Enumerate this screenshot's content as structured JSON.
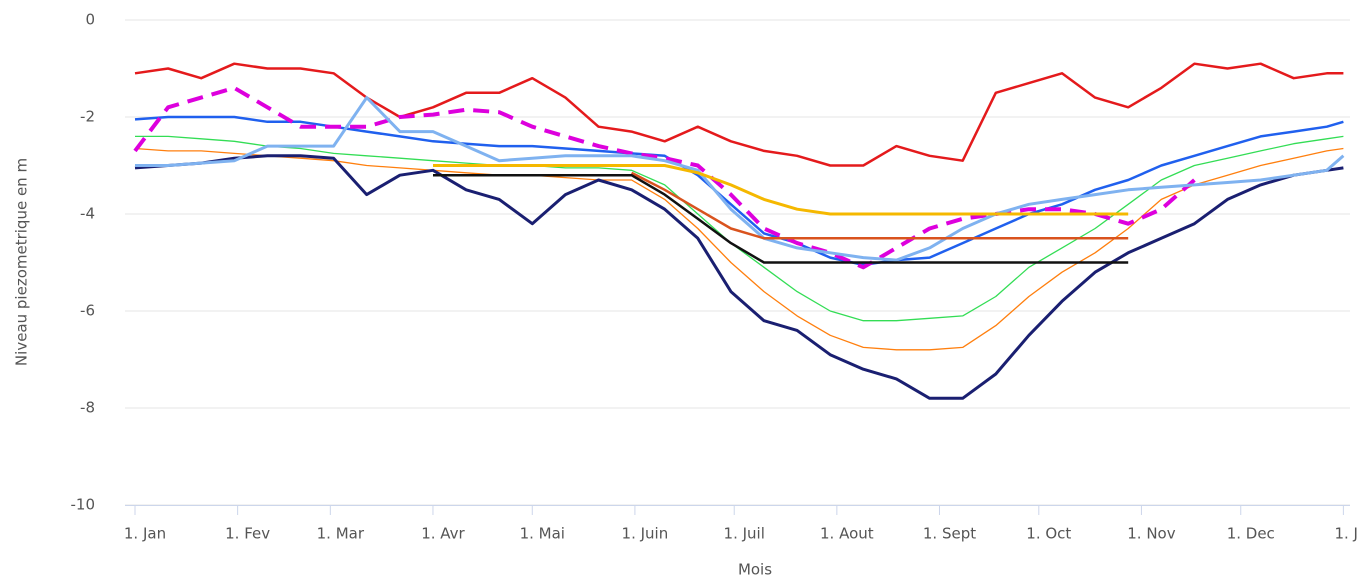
{
  "chart_data": {
    "type": "line",
    "x_label": "Mois",
    "y_label": "Niveau piezometrique en m",
    "x": [
      0,
      10,
      20,
      30,
      40,
      50,
      60,
      70,
      80,
      90,
      100,
      110,
      120,
      130,
      140,
      150,
      160,
      170,
      180,
      190,
      200,
      210,
      220,
      230,
      240,
      250,
      260,
      270,
      280,
      290,
      300,
      310,
      320,
      330,
      340,
      350,
      360,
      365
    ],
    "xlim": [
      0,
      367
    ],
    "xticks": [
      {
        "value": 0,
        "label": "1. Jan"
      },
      {
        "value": 31,
        "label": "1. Fev"
      },
      {
        "value": 59,
        "label": "1. Mar"
      },
      {
        "value": 90,
        "label": "1. Avr"
      },
      {
        "value": 120,
        "label": "1. Mai"
      },
      {
        "value": 151,
        "label": "1. Juin"
      },
      {
        "value": 181,
        "label": "1. Juil"
      },
      {
        "value": 212,
        "label": "1. Aout"
      },
      {
        "value": 243,
        "label": "1. Sept"
      },
      {
        "value": 273,
        "label": "1. Oct"
      },
      {
        "value": 304,
        "label": "1. Nov"
      },
      {
        "value": 334,
        "label": "1. Dec"
      },
      {
        "value": 365,
        "label": "1. J..."
      }
    ],
    "ylim": [
      -10,
      0
    ],
    "yticks": [
      -10,
      -8,
      -6,
      -4,
      -2,
      0
    ],
    "grid": true,
    "series": [
      {
        "color": "#e41a1c",
        "width": 2.5,
        "values": [
          -1.1,
          -1.0,
          -1.2,
          -0.9,
          -1.0,
          -1.0,
          -1.1,
          -1.6,
          -2.0,
          -1.8,
          -1.5,
          -1.5,
          -1.2,
          -1.6,
          -2.2,
          -2.3,
          -2.5,
          -2.2,
          -2.5,
          -2.7,
          -2.8,
          -3.0,
          -3.0,
          -2.6,
          -2.8,
          -2.9,
          -1.5,
          -1.3,
          -1.1,
          -1.6,
          -1.8,
          -1.4,
          -0.9,
          -1.0,
          -0.9,
          -1.2,
          -1.1,
          -1.1
        ]
      },
      {
        "color": "#2060ee",
        "width": 2.5,
        "values": [
          -2.05,
          -2.0,
          -2.0,
          -2.0,
          -2.1,
          -2.1,
          -2.2,
          -2.3,
          -2.4,
          -2.5,
          -2.55,
          -2.6,
          -2.6,
          -2.65,
          -2.7,
          -2.75,
          -2.8,
          -3.2,
          -3.8,
          -4.4,
          -4.6,
          -4.9,
          -5.05,
          -4.95,
          -4.9,
          -4.6,
          -4.3,
          -4.0,
          -3.8,
          -3.5,
          -3.3,
          -3.0,
          -2.8,
          -2.6,
          -2.4,
          -2.3,
          -2.2,
          -2.1
        ]
      },
      {
        "color": "#33dd55",
        "width": 1.3,
        "values": [
          -2.4,
          -2.4,
          -2.45,
          -2.5,
          -2.6,
          -2.65,
          -2.75,
          -2.8,
          -2.85,
          -2.9,
          -2.95,
          -3.0,
          -3.0,
          -3.05,
          -3.05,
          -3.1,
          -3.4,
          -4.0,
          -4.6,
          -5.1,
          -5.6,
          -6.0,
          -6.2,
          -6.2,
          -6.15,
          -6.1,
          -5.7,
          -5.1,
          -4.7,
          -4.3,
          -3.8,
          -3.3,
          -3.0,
          -2.85,
          -2.7,
          -2.55,
          -2.45,
          -2.4
        ]
      },
      {
        "color": "#ff7f0e",
        "width": 1.3,
        "values": [
          -2.65,
          -2.7,
          -2.7,
          -2.75,
          -2.8,
          -2.85,
          -2.9,
          -3.0,
          -3.05,
          -3.1,
          -3.15,
          -3.2,
          -3.2,
          -3.25,
          -3.3,
          -3.3,
          -3.7,
          -4.3,
          -5.0,
          -5.6,
          -6.1,
          -6.5,
          -6.75,
          -6.8,
          -6.8,
          -6.75,
          -6.3,
          -5.7,
          -5.2,
          -4.8,
          -4.3,
          -3.7,
          -3.4,
          -3.2,
          -3.0,
          -2.85,
          -2.7,
          -2.65
        ]
      },
      {
        "color": "#1a1f71",
        "width": 3,
        "values": [
          -3.05,
          -3.0,
          -2.95,
          -2.85,
          -2.8,
          -2.8,
          -2.85,
          -3.6,
          -3.2,
          -3.1,
          -3.5,
          -3.7,
          -4.2,
          -3.6,
          -3.3,
          -3.5,
          -3.9,
          -4.5,
          -5.6,
          -6.2,
          -6.4,
          -6.9,
          -7.2,
          -7.4,
          -7.8,
          -7.8,
          -7.3,
          -6.5,
          -5.8,
          -5.2,
          -4.8,
          -4.5,
          -4.2,
          -3.7,
          -3.4,
          -3.2,
          -3.1,
          -3.05
        ]
      },
      {
        "color": "#dd00dd",
        "width": 4,
        "dashed": true,
        "values": [
          -2.7,
          -1.8,
          -1.6,
          -1.4,
          -1.8,
          -2.2,
          -2.2,
          -2.2,
          -2.0,
          -1.95,
          -1.85,
          -1.9,
          -2.2,
          -2.4,
          -2.6,
          -2.75,
          -2.85,
          -3.0,
          -3.6,
          -4.3,
          -4.6,
          -4.8,
          -5.1,
          -4.7,
          -4.3,
          -4.1,
          -4.0,
          -3.9,
          -3.9,
          -4.0,
          -4.2,
          -3.9,
          -3.3,
          null,
          null,
          null,
          null,
          null
        ]
      },
      {
        "color": "#7fb2f0",
        "width": 3,
        "values": [
          -3.0,
          -3.0,
          -2.95,
          -2.9,
          -2.6,
          -2.6,
          -2.6,
          -1.6,
          -2.3,
          -2.3,
          -2.6,
          -2.9,
          -2.85,
          -2.8,
          -2.8,
          -2.8,
          -2.9,
          -3.1,
          -3.9,
          -4.5,
          -4.7,
          -4.8,
          -4.9,
          -4.95,
          -4.7,
          -4.3,
          -4.0,
          -3.8,
          -3.7,
          -3.6,
          -3.5,
          -3.45,
          -3.4,
          -3.35,
          -3.3,
          -3.2,
          -3.1,
          -2.8
        ]
      },
      {
        "color": "#f5b800",
        "width": 3,
        "values": [
          null,
          null,
          null,
          null,
          null,
          null,
          null,
          null,
          null,
          -3.0,
          -3.0,
          -3.0,
          -3.0,
          -3.0,
          -3.0,
          -3.0,
          -3.0,
          -3.15,
          -3.4,
          -3.7,
          -3.9,
          -4.0,
          -4.0,
          -4.0,
          -4.0,
          -4.0,
          -4.0,
          -4.0,
          -4.0,
          -4.0,
          -4.0,
          null,
          null,
          null,
          null,
          null,
          null,
          null
        ]
      },
      {
        "color": "#d9531e",
        "width": 2.5,
        "values": [
          null,
          null,
          null,
          null,
          null,
          null,
          null,
          null,
          null,
          null,
          null,
          null,
          null,
          null,
          null,
          -3.15,
          -3.5,
          -3.9,
          -4.3,
          -4.5,
          -4.5,
          -4.5,
          -4.5,
          -4.5,
          -4.5,
          -4.5,
          -4.5,
          -4.5,
          -4.5,
          -4.5,
          -4.5,
          null,
          null,
          null,
          null,
          null,
          null,
          null
        ]
      },
      {
        "color": "#111111",
        "width": 2.5,
        "values": [
          null,
          null,
          null,
          null,
          null,
          null,
          null,
          null,
          null,
          -3.2,
          -3.2,
          -3.2,
          -3.2,
          -3.2,
          -3.2,
          -3.2,
          -3.6,
          -4.1,
          -4.6,
          -5.0,
          -5.0,
          -5.0,
          -5.0,
          -5.0,
          -5.0,
          -5.0,
          -5.0,
          -5.0,
          -5.0,
          -5.0,
          -5.0,
          null,
          null,
          null,
          null,
          null,
          null,
          null
        ]
      }
    ]
  }
}
